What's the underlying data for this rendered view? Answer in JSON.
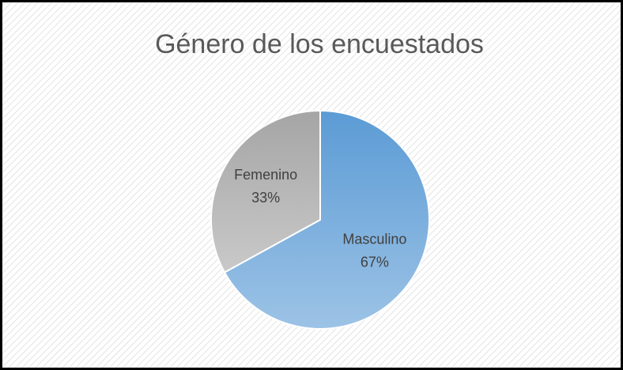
{
  "chart_data": {
    "type": "pie",
    "title": "Género de los encuestados",
    "categories": [
      "Masculino",
      "Femenino"
    ],
    "values": [
      67,
      33
    ],
    "value_labels": [
      "67%",
      "33%"
    ],
    "colors": [
      "#5b9bd5",
      "#a5a5a5"
    ]
  }
}
